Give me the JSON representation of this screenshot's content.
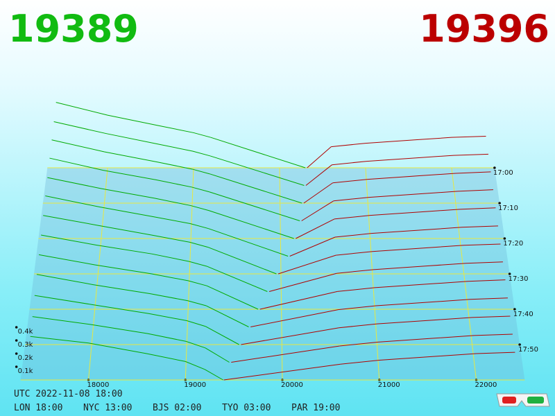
{
  "chart_data": {
    "type": "depth3d",
    "bid_color": "#00aa00",
    "ask_color": "#b00000",
    "grid_color": "#e8e840",
    "xlim": [
      17300,
      22500
    ],
    "xticks": [
      18000,
      19000,
      20000,
      21000,
      22000
    ],
    "yticks": [
      {
        "value": 100,
        "label": "0.1k"
      },
      {
        "value": 200,
        "label": "0.2k"
      },
      {
        "value": 300,
        "label": "0.3k"
      },
      {
        "value": 400,
        "label": "0.4k"
      }
    ],
    "zlim": [
      "17:00",
      "18:00"
    ],
    "zticks": [
      "17:00",
      "17:10",
      "17:20",
      "17:30",
      "17:40",
      "17:50"
    ],
    "x": [
      "17:00",
      "17:05",
      "17:10",
      "17:15",
      "17:20",
      "17:25",
      "17:30",
      "17:35",
      "17:40",
      "17:45",
      "17:50",
      "17:55",
      "18:00"
    ],
    "bid_mid": [
      20300,
      20280,
      20250,
      20220,
      20150,
      20080,
      19950,
      19850,
      19750,
      19650,
      19550,
      19450,
      19389
    ],
    "ask_mid": [
      20320,
      20300,
      20270,
      20240,
      20170,
      20100,
      19970,
      19870,
      19770,
      19670,
      19570,
      19470,
      19396
    ],
    "bid_levels": [
      17400,
      18000,
      18600,
      19000,
      19200
    ],
    "ask_levels": [
      20600,
      21000,
      21600,
      22000,
      22400
    ],
    "bids": [
      [
        560,
        450,
        360,
        300,
        260
      ],
      [
        540,
        440,
        350,
        290,
        250
      ],
      [
        530,
        430,
        345,
        285,
        245
      ],
      [
        520,
        420,
        340,
        280,
        240
      ],
      [
        500,
        410,
        330,
        270,
        230
      ],
      [
        490,
        400,
        320,
        265,
        225
      ],
      [
        470,
        390,
        310,
        255,
        215
      ],
      [
        450,
        370,
        300,
        240,
        200
      ],
      [
        430,
        350,
        280,
        225,
        185
      ],
      [
        410,
        330,
        260,
        205,
        165
      ],
      [
        380,
        310,
        240,
        185,
        140
      ],
      [
        350,
        290,
        220,
        160,
        110
      ],
      [
        330,
        280,
        200,
        140,
        80
      ]
    ],
    "asks": [
      [
        180,
        210,
        240,
        260,
        270
      ],
      [
        175,
        205,
        235,
        255,
        265
      ],
      [
        170,
        200,
        230,
        250,
        262
      ],
      [
        165,
        195,
        225,
        245,
        258
      ],
      [
        160,
        190,
        220,
        240,
        252
      ],
      [
        155,
        185,
        215,
        235,
        246
      ],
      [
        150,
        180,
        210,
        230,
        240
      ],
      [
        145,
        175,
        205,
        225,
        236
      ],
      [
        140,
        170,
        200,
        220,
        232
      ],
      [
        135,
        165,
        195,
        215,
        226
      ],
      [
        130,
        160,
        190,
        210,
        220
      ],
      [
        125,
        155,
        185,
        205,
        215
      ],
      [
        120,
        150,
        180,
        200,
        210
      ]
    ]
  },
  "footer": {
    "utc": "UTC 2022-11-08 18:00",
    "clocks": [
      "LON 18:00",
      "NYC 13:00",
      "BJS 02:00",
      "TYO 03:00",
      "PAR 19:00"
    ]
  }
}
